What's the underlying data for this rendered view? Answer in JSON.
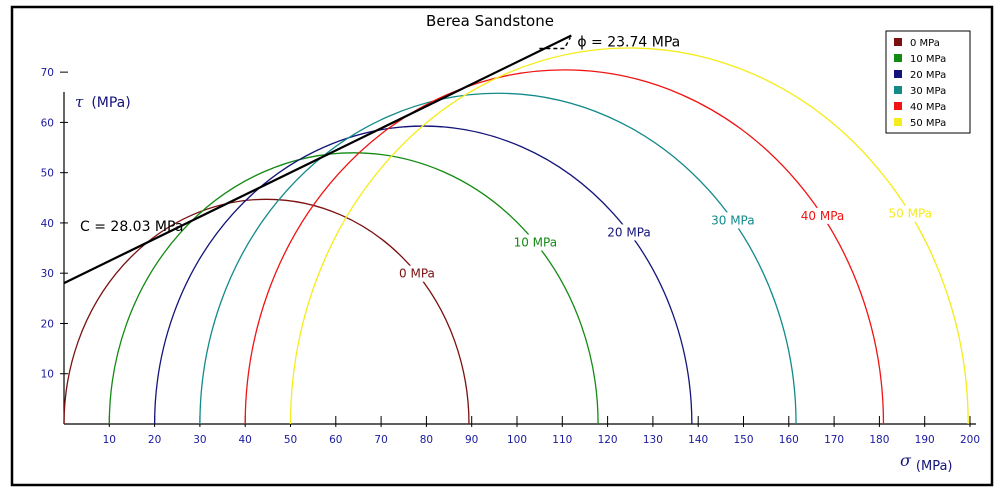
{
  "chart_data": {
    "type": "line",
    "title": "Berea Sandstone",
    "xlabel_symbol": "σ",
    "xlabel_unit": "(MPa)",
    "ylabel_symbol": "τ",
    "ylabel_unit": "(MPa)",
    "xlim": [
      0,
      200
    ],
    "ylim": [
      0,
      75
    ],
    "x_ticks": [
      10,
      20,
      30,
      40,
      50,
      60,
      70,
      80,
      90,
      100,
      110,
      120,
      130,
      140,
      150,
      160,
      170,
      180,
      190,
      200
    ],
    "y_ticks": [
      10,
      20,
      30,
      40,
      50,
      60,
      70
    ],
    "grid": false,
    "legend_position": "top-right",
    "series": [
      {
        "name": "0 MPa",
        "sigma3": 0,
        "sigma1": 89.4,
        "color": "#7a1010",
        "label": "0 MPa"
      },
      {
        "name": "10 MPa",
        "sigma3": 10,
        "sigma1": 117.9,
        "color": "#138a13",
        "label": "10 MPa"
      },
      {
        "name": "20 MPa",
        "sigma3": 20,
        "sigma1": 138.6,
        "color": "#14147a",
        "label": "20 MPa"
      },
      {
        "name": "30 MPa",
        "sigma3": 30,
        "sigma1": 161.6,
        "color": "#138a8a",
        "label": "30 MPa"
      },
      {
        "name": "40 MPa",
        "sigma3": 40,
        "sigma1": 180.9,
        "color": "#f01414",
        "label": "40 MPa"
      },
      {
        "name": "50 MPa",
        "sigma3": 50,
        "sigma1": 199.6,
        "color": "#f5ec1c",
        "label": "50 MPa"
      }
    ],
    "envelope": {
      "intercept": 28.03,
      "friction_angle_deg": 23.74,
      "x_end": 112,
      "cohesion_label": "C = 28.03 MPa",
      "angle_label": "ϕ = 23.74 MPa"
    }
  }
}
